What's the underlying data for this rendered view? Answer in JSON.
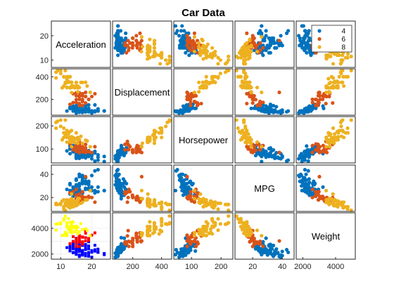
{
  "chart_data": {
    "type": "scatter",
    "title": "Car Data",
    "variables": [
      "Acceleration",
      "Displacement",
      "Horsepower",
      "MPG",
      "Weight"
    ],
    "ranges": {
      "Acceleration": [
        7,
        26
      ],
      "Displacement": [
        60,
        470
      ],
      "Horsepower": [
        40,
        240
      ],
      "MPG": [
        8,
        48
      ],
      "Weight": [
        1600,
        5200
      ]
    },
    "ticks": {
      "Acceleration": [
        10,
        20
      ],
      "Displacement": [
        200,
        400
      ],
      "Horsepower": [
        100,
        200
      ],
      "MPG": [
        20,
        40
      ],
      "Weight": [
        2000,
        4000
      ]
    },
    "groups": [
      {
        "name": "4",
        "color": "#0072BD",
        "alt_color": "#0000FF",
        "points": [
          [
            15,
            97,
            88,
            27,
            2130
          ],
          [
            16,
            107,
            86,
            26,
            2410
          ],
          [
            17,
            91,
            67,
            33,
            1970
          ],
          [
            19,
            98,
            68,
            31,
            2045
          ],
          [
            14,
            97,
            88,
            27,
            2100
          ],
          [
            20,
            90,
            71,
            29,
            2264
          ],
          [
            16,
            113,
            95,
            24,
            2372
          ],
          [
            15,
            120,
            97,
            23,
            2506
          ],
          [
            21,
            98,
            83,
            26,
            2219
          ],
          [
            17,
            85,
            70,
            34,
            1990
          ],
          [
            18,
            89,
            62,
            37,
            2050
          ],
          [
            15,
            108,
            75,
            30,
            2265
          ],
          [
            14,
            140,
            90,
            22,
            2408
          ],
          [
            16,
            122,
            86,
            25,
            2220
          ],
          [
            17,
            105,
            75,
            35,
            2230
          ],
          [
            13,
            121,
            113,
            26,
            2234
          ],
          [
            19,
            151,
            90,
            27,
            2950
          ],
          [
            18,
            135,
            84,
            32,
            2370
          ],
          [
            16,
            119,
            97,
            27,
            2300
          ],
          [
            15,
            112,
            88,
            28,
            2395
          ],
          [
            20,
            79,
            58,
            39,
            1755
          ],
          [
            22,
            98,
            65,
            29,
            2380
          ],
          [
            24,
            97,
            46,
            26,
            1950
          ],
          [
            17,
            86,
            65,
            37,
            2110
          ],
          [
            16,
            91,
            60,
            38,
            1800
          ],
          [
            15,
            105,
            63,
            35,
            2125
          ],
          [
            21,
            90,
            48,
            43,
            2335
          ],
          [
            18,
            151,
            88,
            27,
            2740
          ],
          [
            14,
            116,
            90,
            29,
            2123
          ],
          [
            12,
            97,
            92,
            27,
            2500
          ],
          [
            13,
            130,
            102,
            31,
            2700
          ],
          [
            19,
            108,
            93,
            33,
            2405
          ],
          [
            16,
            156,
            105,
            32,
            2745
          ],
          [
            15,
            146,
            97,
            25,
            2815
          ],
          [
            14,
            121,
            115,
            21,
            2795
          ],
          [
            17,
            113,
            95,
            24,
            2278
          ],
          [
            18,
            91,
            67,
            34,
            1850
          ],
          [
            16,
            89,
            71,
            30,
            1925
          ],
          [
            22,
            97,
            52,
            44,
            2130
          ],
          [
            24,
            98,
            68,
            26,
            2045
          ],
          [
            17,
            140,
            88,
            24,
            2720
          ],
          [
            19,
            120,
            79,
            31,
            2625
          ],
          [
            15,
            141,
            80,
            29,
            3230
          ],
          [
            14,
            134,
            95,
            24,
            2515
          ],
          [
            16,
            151,
            84,
            27,
            2635
          ],
          [
            13,
            122,
            80,
            23,
            2451
          ],
          [
            17,
            97,
            75,
            32,
            2171
          ],
          [
            19,
            90,
            75,
            28,
            2125
          ],
          [
            20,
            98,
            76,
            26,
            2144
          ],
          [
            18,
            112,
            85,
            28,
            2575
          ],
          [
            15,
            135,
            84,
            36,
            2385
          ],
          [
            16,
            105,
            70,
            40,
            2200
          ],
          [
            17,
            144,
            96,
            34,
            2665
          ],
          [
            14,
            107,
            90,
            24,
            2430
          ],
          [
            21,
            151,
            90,
            24,
            2678
          ],
          [
            16,
            86,
            64,
            40,
            1875
          ],
          [
            13,
            119,
            100,
            32,
            2615
          ],
          [
            18,
            120,
            88,
            19,
            3270
          ],
          [
            15,
            89,
            60,
            35,
            1975
          ],
          [
            19,
            97,
            71,
            34,
            1825
          ],
          [
            17,
            98,
            80,
            39,
            1915
          ],
          [
            22,
            116,
            75,
            25,
            2158
          ],
          [
            16,
            140,
            72,
            22,
            2408
          ],
          [
            14,
            121,
            110,
            22,
            2600
          ],
          [
            15,
            79,
            70,
            31,
            2074
          ],
          [
            18,
            108,
            75,
            32,
            2350
          ]
        ]
      },
      {
        "name": "6",
        "color": "#D95319",
        "alt_color": "#FF0000",
        "points": [
          [
            15,
            198,
            95,
            22,
            2833
          ],
          [
            16,
            200,
            85,
            20,
            2587
          ],
          [
            18,
            225,
            105,
            18,
            3613
          ],
          [
            17,
            250,
            100,
            17,
            3329
          ],
          [
            15,
            232,
            90,
            19,
            3210
          ],
          [
            16,
            258,
            110,
            18,
            2962
          ],
          [
            17,
            199,
            97,
            21,
            2774
          ],
          [
            18,
            225,
            95,
            19,
            3264
          ],
          [
            16,
            231,
            110,
            21,
            3039
          ],
          [
            14,
            250,
            105,
            17,
            3353
          ],
          [
            19,
            200,
            88,
            20,
            3060
          ],
          [
            17,
            232,
            100,
            18,
            2945
          ],
          [
            16,
            225,
            100,
            18,
            3430
          ],
          [
            15,
            258,
            110,
            19,
            3021
          ],
          [
            21,
            250,
            110,
            16,
            3645
          ],
          [
            18,
            168,
            120,
            20,
            3820
          ],
          [
            16,
            163,
            133,
            16,
            3410
          ],
          [
            13,
            156,
            122,
            24,
            2807
          ],
          [
            17,
            181,
            110,
            25,
            2945
          ],
          [
            16,
            231,
            115,
            20,
            3245
          ],
          [
            15,
            173,
            115,
            27,
            2595
          ],
          [
            14,
            171,
            97,
            25,
            2984
          ],
          [
            18,
            262,
            85,
            38,
            3015
          ],
          [
            19,
            200,
            90,
            21,
            3210
          ],
          [
            16,
            146,
            120,
            23,
            2930
          ],
          [
            20,
            225,
            85,
            20,
            3465
          ],
          [
            17,
            250,
            88,
            19,
            3302
          ],
          [
            17,
            146,
            97,
            25,
            2795
          ]
        ]
      },
      {
        "name": "8",
        "color": "#EDB120",
        "alt_color": "#FFFF00",
        "points": [
          [
            12,
            307,
            130,
            18,
            3504
          ],
          [
            11.5,
            350,
            165,
            15,
            3693
          ],
          [
            11,
            318,
            150,
            18,
            3436
          ],
          [
            12,
            304,
            150,
            16,
            3433
          ],
          [
            10.5,
            302,
            140,
            17,
            3449
          ],
          [
            10,
            429,
            198,
            15,
            4341
          ],
          [
            9,
            454,
            220,
            14,
            4354
          ],
          [
            8.5,
            440,
            215,
            14,
            4312
          ],
          [
            10,
            455,
            225,
            14,
            4425
          ],
          [
            8.5,
            390,
            190,
            15,
            3850
          ],
          [
            12,
            383,
            170,
            15,
            3563
          ],
          [
            11.5,
            340,
            160,
            14,
            3609
          ],
          [
            13,
            400,
            150,
            15,
            3761
          ],
          [
            12,
            360,
            175,
            13,
            4100
          ],
          [
            13,
            400,
            175,
            11,
            4464
          ],
          [
            11,
            400,
            170,
            12,
            4615
          ],
          [
            12.5,
            360,
            150,
            13,
            3940
          ],
          [
            12,
            350,
            180,
            13,
            4422
          ],
          [
            13,
            304,
            150,
            13,
            3892
          ],
          [
            14,
            318,
            140,
            12,
            4129
          ],
          [
            14.5,
            302,
            129,
            15,
            3725
          ],
          [
            15,
            350,
            145,
            13,
            3988
          ],
          [
            15.5,
            318,
            150,
            14,
            4077
          ],
          [
            11,
            400,
            190,
            10,
            4732
          ],
          [
            11.5,
            455,
            225,
            9,
            4951
          ],
          [
            13.5,
            351,
            153,
            14,
            4154
          ],
          [
            14.5,
            305,
            145,
            13,
            4055
          ],
          [
            13,
            302,
            140,
            16,
            4141
          ],
          [
            13.5,
            318,
            140,
            17,
            4080
          ],
          [
            17,
            350,
            125,
            16,
            3900
          ],
          [
            16.5,
            350,
            155,
            15,
            4360
          ],
          [
            12,
            400,
            180,
            16,
            4220
          ],
          [
            14,
            318,
            145,
            17,
            4140
          ],
          [
            13,
            302,
            130,
            18,
            3870
          ],
          [
            16,
            305,
            140,
            19,
            3735
          ],
          [
            18,
            351,
            138,
            18,
            3955
          ],
          [
            18.5,
            318,
            135,
            18,
            3830
          ],
          [
            15,
            350,
            170,
            16,
            4165
          ],
          [
            13.5,
            260,
            110,
            19,
            3645
          ],
          [
            12.5,
            350,
            165,
            17,
            3940
          ],
          [
            13.5,
            305,
            130,
            23,
            3840
          ],
          [
            15.5,
            267,
            125,
            19,
            3605
          ],
          [
            14,
            318,
            150,
            16,
            4498
          ],
          [
            15.5,
            302,
            139,
            17,
            3570
          ],
          [
            19.5,
            262,
            110,
            26,
            3425
          ],
          [
            13.5,
            350,
            180,
            16,
            4380
          ],
          [
            12.5,
            400,
            170,
            12,
            4746
          ],
          [
            15,
            318,
            145,
            17,
            3850
          ]
        ]
      }
    ],
    "legend": {
      "entries": [
        "4",
        "6",
        "8"
      ],
      "position": "top-right"
    },
    "grid": false
  }
}
